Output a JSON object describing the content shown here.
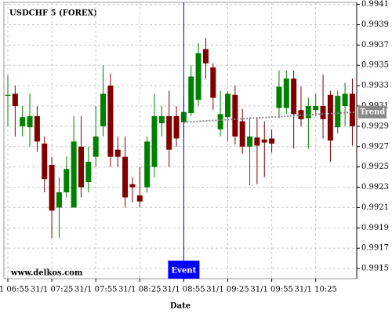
{
  "chart_data": {
    "type": "candlestick",
    "title": "USDCHF 5 (FOREX)",
    "watermark": "www.delkos.com",
    "x_label": "Date",
    "categories": [
      "31/1 06:55",
      null,
      null,
      null,
      null,
      null,
      "31/1 07:25",
      null,
      null,
      null,
      null,
      null,
      "31/1 07:55",
      null,
      null,
      null,
      null,
      null,
      "31/1 08:25",
      null,
      null,
      null,
      null,
      null,
      "31/1 08:55",
      null,
      null,
      null,
      null,
      null,
      "31/1 09:25",
      null,
      null,
      null,
      null,
      null,
      "31/1 09:55",
      null,
      null,
      null,
      null,
      null,
      "31/1 10:25",
      null,
      null,
      null,
      null,
      null
    ],
    "open": [
      0.9932,
      0.99322,
      0.9929,
      0.99289,
      0.993,
      0.99273,
      0.99252,
      0.9921,
      0.99225,
      0.9921,
      0.9927,
      0.99235,
      0.9926,
      0.9929,
      0.9933,
      0.99267,
      0.9926,
      0.99233,
      0.99222,
      0.9923,
      0.9925,
      0.99293,
      0.993,
      0.993,
      0.99294,
      0.99303,
      0.99316,
      0.99366,
      0.99348,
      0.99287,
      0.99299,
      0.99321,
      0.99295,
      0.9927,
      0.99279,
      0.99277,
      0.99278,
      0.99308,
      0.99308,
      0.99337,
      0.99306,
      0.99298,
      0.99306,
      0.9931,
      0.99321,
      0.99289,
      0.9931,
      0.99322
    ],
    "high": [
      0.9934,
      0.9933,
      0.9931,
      0.99322,
      0.9931,
      0.9928,
      0.9926,
      0.9924,
      0.9926,
      0.993,
      0.993,
      0.9927,
      0.9931,
      0.9935,
      0.99342,
      0.9928,
      0.9928,
      0.9924,
      0.9925,
      0.9928,
      0.99322,
      0.9931,
      0.99325,
      0.9931,
      0.9932,
      0.9935,
      0.99372,
      0.99377,
      0.99352,
      0.99325,
      0.99325,
      0.9933,
      0.99307,
      0.99299,
      0.99299,
      0.99295,
      0.99287,
      0.99345,
      0.99345,
      0.99345,
      0.99329,
      0.99318,
      0.99322,
      0.99341,
      0.99325,
      0.99325,
      0.99333,
      0.99337
    ],
    "low": [
      0.9929,
      0.9928,
      0.9928,
      0.9927,
      0.99265,
      0.99225,
      0.9918,
      0.9918,
      0.9922,
      0.9921,
      0.9922,
      0.99225,
      0.9925,
      0.9928,
      0.9925,
      0.9925,
      0.9921,
      0.99215,
      0.9921,
      0.99225,
      0.9924,
      0.9928,
      0.9925,
      0.9927,
      0.9928,
      0.993,
      0.9931,
      0.99337,
      0.99306,
      0.9928,
      0.99275,
      0.99272,
      0.99263,
      0.99232,
      0.99233,
      0.9924,
      0.99264,
      0.99298,
      0.99302,
      0.99268,
      0.9929,
      0.99268,
      0.993,
      0.99278,
      0.99255,
      0.99283,
      0.9929,
      0.99271
    ],
    "close": [
      0.99321,
      0.9931,
      0.99299,
      0.993,
      0.99275,
      0.99238,
      0.99207,
      0.99225,
      0.99248,
      0.99275,
      0.9923,
      0.99255,
      0.9928,
      0.99322,
      0.9926,
      0.9926,
      0.9922,
      0.9923,
      0.99216,
      0.99275,
      0.993,
      0.993,
      0.99267,
      0.99278,
      0.99304,
      0.99339,
      0.99362,
      0.99352,
      0.99318,
      0.99302,
      0.99322,
      0.9928,
      0.9927,
      0.9928,
      0.99271,
      0.99274,
      0.99273,
      0.99329,
      0.99337,
      0.99302,
      0.99297,
      0.9931,
      0.9931,
      0.99297,
      0.99276,
      0.9932,
      0.99322,
      0.9929
    ],
    "up_color": "#008000",
    "down_color": "#800000",
    "ylim": [
      0.9914,
      0.99412
    ],
    "yticks": [
      0.9915,
      0.9917,
      0.9919,
      0.9921,
      0.9923,
      0.9925,
      0.9927,
      0.9929,
      0.9931,
      0.9933,
      0.9935,
      0.9937,
      0.9939,
      0.9941
    ],
    "grid": true,
    "event": {
      "label": "Event",
      "at": "31/1 08:55",
      "color": "#0000ff"
    },
    "trend": {
      "label": "Trend",
      "from": 0.99294,
      "to": 0.99304,
      "color": "#888888"
    }
  }
}
